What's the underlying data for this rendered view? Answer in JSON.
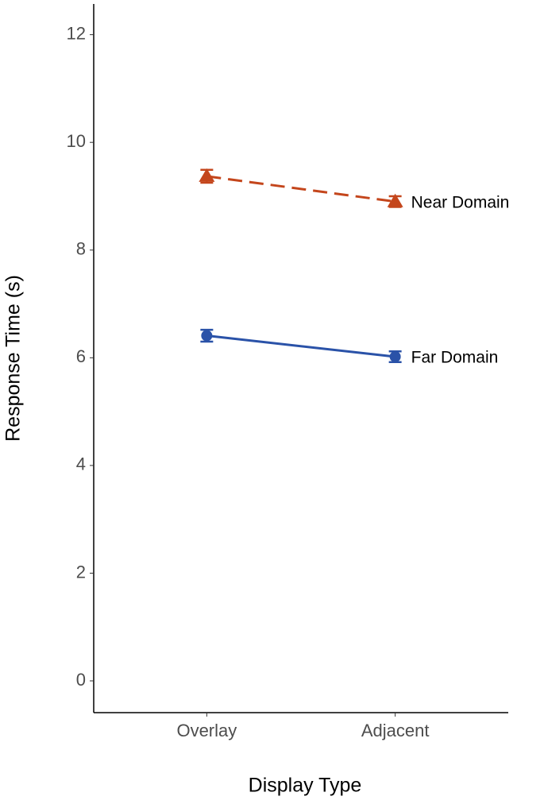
{
  "chart_data": {
    "type": "line",
    "x_label": "Display Type",
    "y_label": "Response Time (s)",
    "categories": [
      "Overlay",
      "Adjacent"
    ],
    "series": [
      {
        "name": "Near Domain",
        "color": "#c4461c",
        "linestyle": "dashed",
        "marker": "triangle",
        "values": [
          9.37,
          8.9
        ],
        "errors": [
          0.12,
          0.1
        ]
      },
      {
        "name": "Far Domain",
        "color": "#2a52a8",
        "linestyle": "solid",
        "marker": "circle",
        "values": [
          6.41,
          6.02
        ],
        "errors": [
          0.11,
          0.1
        ]
      }
    ],
    "ylim": [
      -0.59,
      12.57
    ],
    "yticks": [
      0,
      2,
      4,
      6,
      8,
      10,
      12
    ],
    "grid": false
  }
}
